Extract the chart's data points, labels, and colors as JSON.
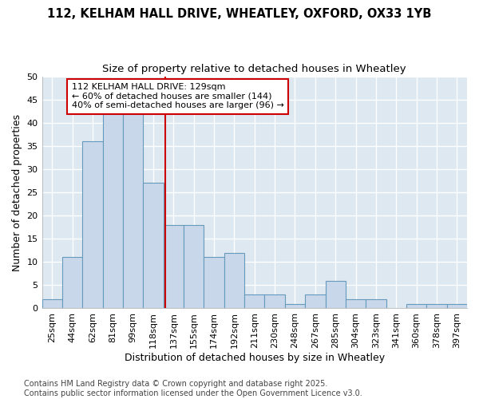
{
  "title_line1": "112, KELHAM HALL DRIVE, WHEATLEY, OXFORD, OX33 1YB",
  "title_line2": "Size of property relative to detached houses in Wheatley",
  "xlabel": "Distribution of detached houses by size in Wheatley",
  "ylabel": "Number of detached properties",
  "categories": [
    "25sqm",
    "44sqm",
    "62sqm",
    "81sqm",
    "99sqm",
    "118sqm",
    "137sqm",
    "155sqm",
    "174sqm",
    "192sqm",
    "211sqm",
    "230sqm",
    "248sqm",
    "267sqm",
    "285sqm",
    "304sqm",
    "323sqm",
    "341sqm",
    "360sqm",
    "378sqm",
    "397sqm"
  ],
  "values": [
    2,
    11,
    36,
    42,
    42,
    27,
    18,
    18,
    11,
    12,
    3,
    3,
    1,
    3,
    6,
    2,
    2,
    0,
    1,
    1,
    1
  ],
  "bar_color": "#c8d8ea",
  "bar_edge_color": "#6699bb",
  "bar_width": 1.0,
  "ylim": [
    0,
    50
  ],
  "yticks": [
    0,
    5,
    10,
    15,
    20,
    25,
    30,
    35,
    40,
    45,
    50
  ],
  "red_line_x": 5.58,
  "annotation_text": "112 KELHAM HALL DRIVE: 129sqm\n← 60% of detached houses are smaller (144)\n40% of semi-detached houses are larger (96) →",
  "annotation_box_color": "#ffffff",
  "annotation_border_color": "#cc0000",
  "footer_text": "Contains HM Land Registry data © Crown copyright and database right 2025.\nContains public sector information licensed under the Open Government Licence v3.0.",
  "bg_color": "#ffffff",
  "plot_bg_color": "#dde8f0",
  "grid_color": "#ffffff",
  "title_fontsize": 10.5,
  "subtitle_fontsize": 9.5,
  "tick_fontsize": 8,
  "label_fontsize": 9,
  "footer_fontsize": 7
}
